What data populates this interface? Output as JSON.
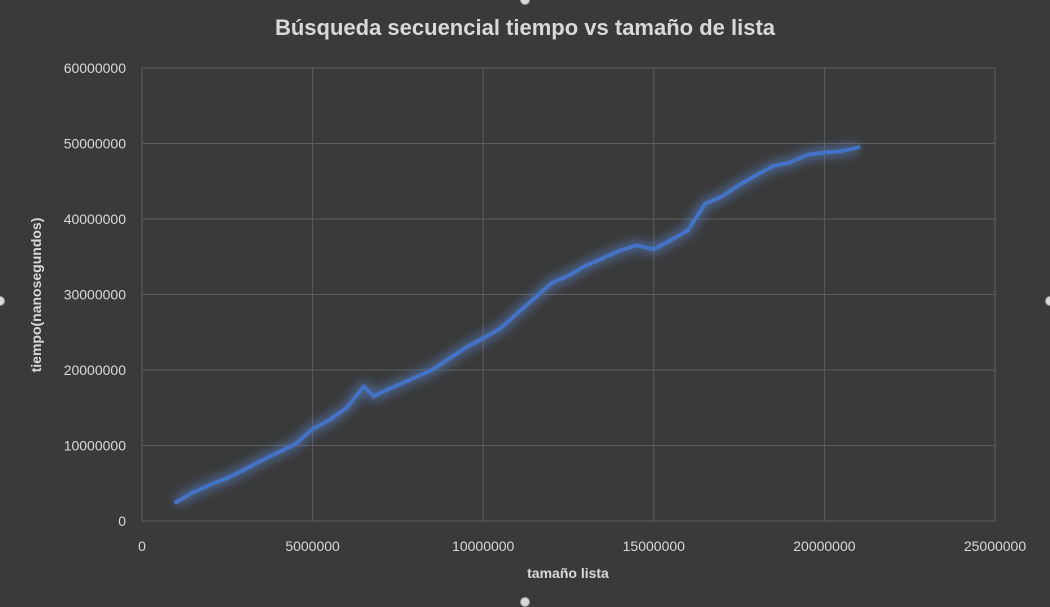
{
  "colors": {
    "background": "#3a3a3a",
    "grid": "#5d5d5d",
    "text": "#d9d9d9",
    "series": "#4472c4",
    "glow": "#5b8bdc"
  },
  "chart_data": {
    "type": "line",
    "title": "Búsqueda secuencial tiempo vs tamaño de lista",
    "xlabel": "tamaño lista",
    "ylabel": "tiempo(nanosegundos)",
    "xlim": [
      0,
      25000000
    ],
    "ylim": [
      0,
      60000000
    ],
    "x_ticks": [
      0,
      5000000,
      10000000,
      15000000,
      20000000,
      25000000
    ],
    "y_ticks": [
      0,
      10000000,
      20000000,
      30000000,
      40000000,
      50000000,
      60000000
    ],
    "grid": true,
    "legend": "none",
    "series": [
      {
        "x": [
          1000000,
          1500000,
          2000000,
          2500000,
          3000000,
          3500000,
          4000000,
          4500000,
          5000000,
          5500000,
          6000000,
          6500000,
          6800000,
          7000000,
          7500000,
          8000000,
          8500000,
          9000000,
          9500000,
          10000000,
          10500000,
          11000000,
          11500000,
          12000000,
          12500000,
          13000000,
          13500000,
          14000000,
          14500000,
          15000000,
          15500000,
          16000000,
          16500000,
          17000000,
          17500000,
          18000000,
          18500000,
          19000000,
          19500000,
          20000000,
          20500000,
          21000000
        ],
        "y": [
          2500000,
          3800000,
          4800000,
          5700000,
          6800000,
          8000000,
          9100000,
          10200000,
          12200000,
          13400000,
          15000000,
          17800000,
          16500000,
          17000000,
          18000000,
          19000000,
          20000000,
          21500000,
          23000000,
          24200000,
          25500000,
          27500000,
          29500000,
          31500000,
          32500000,
          33800000,
          34800000,
          35800000,
          36500000,
          36000000,
          37200000,
          38500000,
          42000000,
          43000000,
          44500000,
          45800000,
          47000000,
          47500000,
          48500000,
          48800000,
          49000000,
          49500000
        ]
      }
    ]
  }
}
